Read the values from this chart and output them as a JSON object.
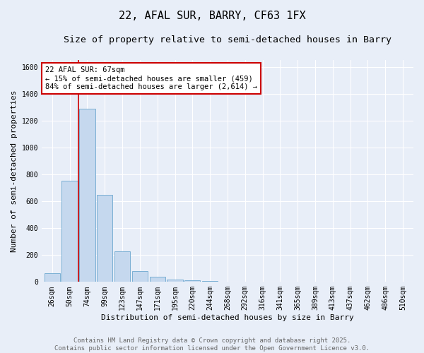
{
  "title": "22, AFAL SUR, BARRY, CF63 1FX",
  "subtitle": "Size of property relative to semi-detached houses in Barry",
  "xlabel": "Distribution of semi-detached houses by size in Barry",
  "ylabel": "Number of semi-detached properties",
  "categories": [
    "26sqm",
    "50sqm",
    "74sqm",
    "99sqm",
    "123sqm",
    "147sqm",
    "171sqm",
    "195sqm",
    "220sqm",
    "244sqm",
    "268sqm",
    "292sqm",
    "316sqm",
    "341sqm",
    "365sqm",
    "389sqm",
    "413sqm",
    "437sqm",
    "462sqm",
    "486sqm",
    "510sqm"
  ],
  "values": [
    65,
    750,
    1290,
    650,
    230,
    80,
    40,
    20,
    10,
    5,
    2,
    0,
    0,
    0,
    0,
    0,
    0,
    0,
    0,
    0,
    0
  ],
  "bar_color": "#c5d8ee",
  "bar_edge_color": "#7aafd4",
  "red_line_x": 1.5,
  "ylim": [
    0,
    1650
  ],
  "yticks": [
    0,
    200,
    400,
    600,
    800,
    1000,
    1200,
    1400,
    1600
  ],
  "annotation_text": "22 AFAL SUR: 67sqm\n← 15% of semi-detached houses are smaller (459)\n84% of semi-detached houses are larger (2,614) →",
  "annotation_box_facecolor": "#ffffff",
  "annotation_box_edgecolor": "#cc0000",
  "footer_line1": "Contains HM Land Registry data © Crown copyright and database right 2025.",
  "footer_line2": "Contains public sector information licensed under the Open Government Licence v3.0.",
  "bg_color": "#e8eef8",
  "grid_color": "#ffffff",
  "title_fontsize": 11,
  "subtitle_fontsize": 9.5,
  "axis_label_fontsize": 8,
  "tick_fontsize": 7,
  "annotation_fontsize": 7.5,
  "footer_fontsize": 6.5,
  "footer_color": "#666666"
}
